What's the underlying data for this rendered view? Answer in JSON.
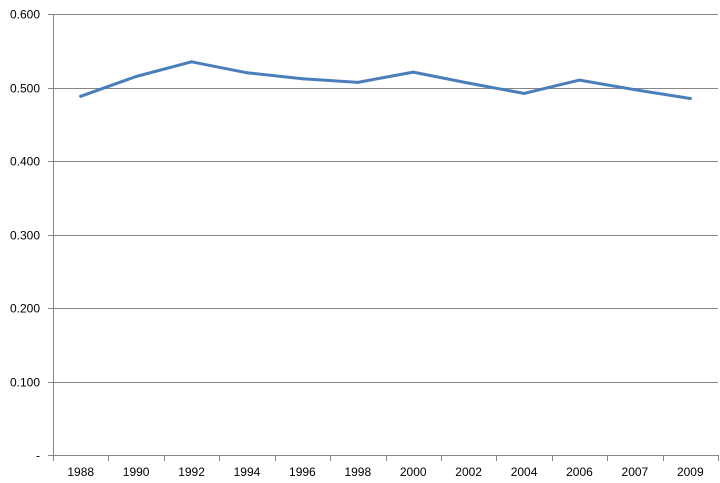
{
  "chart_data": {
    "type": "line",
    "title": "",
    "xlabel": "",
    "ylabel": "",
    "categories": [
      "1988",
      "1990",
      "1992",
      "1994",
      "1996",
      "1998",
      "2000",
      "2002",
      "2004",
      "2006",
      "2007",
      "2009"
    ],
    "series": [
      {
        "values": [
          0.488,
          0.515,
          0.535,
          0.52,
          0.512,
          0.507,
          0.521,
          0.506,
          0.492,
          0.51,
          0.497,
          0.485
        ],
        "color": "#4a7ebb"
      }
    ],
    "ylim": [
      0,
      0.6
    ],
    "y_ticks": [
      "-",
      "0.100",
      "0.200",
      "0.300",
      "0.400",
      "0.500",
      "0.600"
    ],
    "grid": true,
    "legend": "none"
  }
}
